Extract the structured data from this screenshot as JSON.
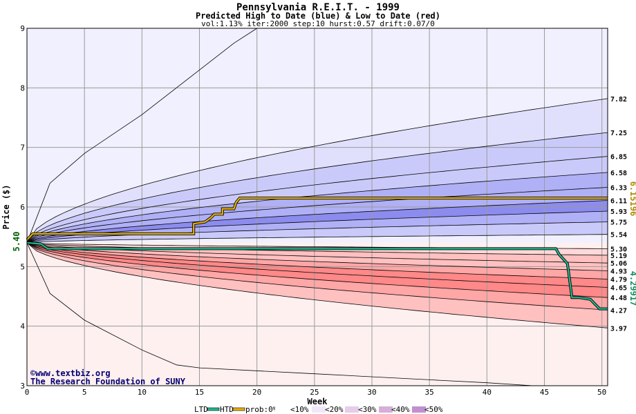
{
  "header": {
    "title": "Pennsylvania R.E.I.T. - 1999",
    "subtitle": "Predicted High to Date (blue) &  Low to Date (red)",
    "params": "vol:1.13% iter:2000 step:10 hurst:0.57 drift:0.07/0"
  },
  "credit": {
    "line1": "©www.textbiz.org",
    "line2": "The Research Foundation of SUNY"
  },
  "legend": {
    "ltd": "LTD",
    "htd": "HTD",
    "prob": "prob:0%",
    "b10": "<10%",
    "b20": "<20%",
    "b30": "<30%",
    "b40": "<40%",
    "b50": "<50%"
  },
  "side": {
    "start_label": "5.40",
    "htd_final_label": "6.15196",
    "ltd_final_label": "4.29917"
  },
  "colors": {
    "htd_line": "#e8b400",
    "ltd_line": "#20b890",
    "blue_band_1": "#f0f0fe",
    "blue_band_2": "#e0e0fc",
    "blue_band_3": "#cacafa",
    "blue_band_4": "#b0b0f6",
    "blue_band_5": "#8c8cee",
    "red_band_1": "#fff0f0",
    "red_band_2": "#ffd8d8",
    "red_band_3": "#ffc0c0",
    "red_band_4": "#ffa6a6",
    "red_band_5": "#ff8888",
    "grid": "#9a9a9a"
  },
  "chart_data": {
    "type": "area",
    "xlabel": "Week",
    "ylabel": "Price ($)",
    "xlim": [
      0,
      50.5
    ],
    "ylim": [
      3,
      9
    ],
    "x_ticks": [
      "0",
      "5",
      "10",
      "15",
      "20",
      "25",
      "30",
      "35",
      "40",
      "45",
      "50"
    ],
    "y_ticks": [
      "3",
      "4",
      "5",
      "6",
      "7",
      "8",
      "9"
    ],
    "grid": true,
    "start_price": 5.4,
    "high_quantiles_final": [
      7.82,
      7.25,
      6.85,
      6.58,
      6.33,
      6.11,
      5.93,
      5.75,
      5.54
    ],
    "low_quantiles_final": [
      5.3,
      5.19,
      5.06,
      4.93,
      4.79,
      4.65,
      4.48,
      4.27,
      3.97
    ],
    "high_outer_envelope": {
      "x": [
        0,
        2,
        5,
        10,
        15,
        18,
        20
      ],
      "y": [
        5.4,
        6.4,
        6.9,
        7.55,
        8.3,
        8.75,
        9.0
      ]
    },
    "low_outer_envelope": {
      "x": [
        0,
        2,
        5,
        10,
        13,
        15,
        25,
        35,
        40,
        44
      ],
      "y": [
        5.4,
        4.55,
        4.1,
        3.6,
        3.35,
        3.3,
        3.2,
        3.1,
        3.05,
        3.0
      ]
    },
    "series": [
      {
        "name": "HTD",
        "x": [
          0,
          0.5,
          13,
          14.5,
          14.5,
          15.5,
          16,
          16.3,
          17,
          17,
          18,
          18.2,
          18.5,
          50.5
        ],
        "y": [
          5.45,
          5.55,
          5.55,
          5.55,
          5.72,
          5.75,
          5.82,
          5.88,
          5.88,
          5.97,
          5.97,
          6.08,
          6.15,
          6.15
        ]
      },
      {
        "name": "LTD",
        "x": [
          0,
          1.2,
          1.8,
          46,
          46.3,
          47,
          47.4,
          48,
          49,
          49.5,
          49.8,
          50.5
        ],
        "y": [
          5.4,
          5.38,
          5.3,
          5.3,
          5.2,
          5.05,
          4.48,
          4.48,
          4.45,
          4.35,
          4.29,
          4.29
        ]
      }
    ]
  }
}
